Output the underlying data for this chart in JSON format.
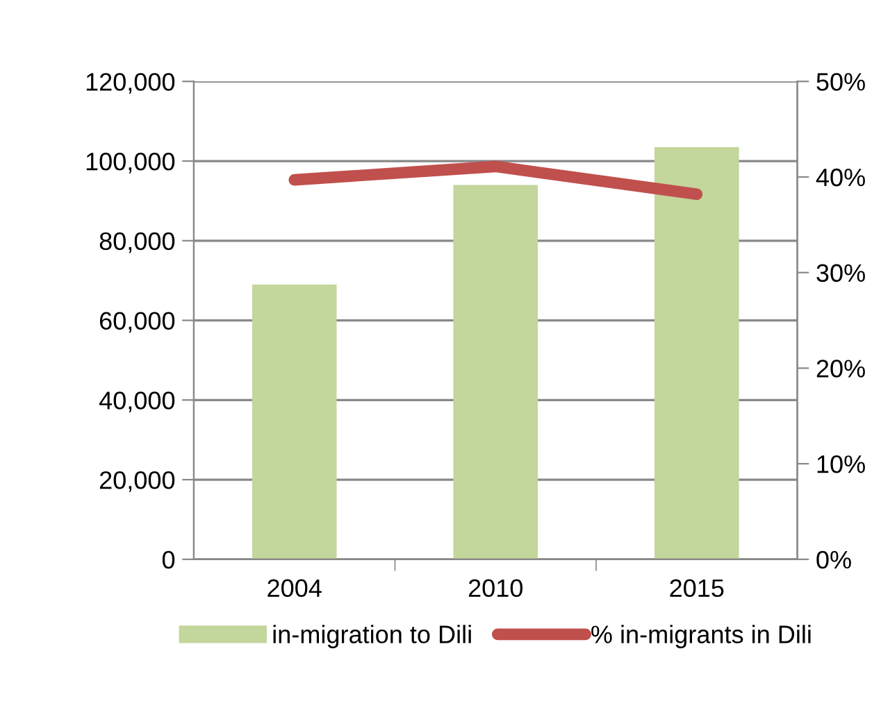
{
  "chart_data": {
    "type": "bar",
    "categories": [
      "2004",
      "2010",
      "2015"
    ],
    "series": [
      {
        "name": "in-migration to Dili",
        "color": "#c3d69b",
        "values": [
          69000,
          94000,
          103500
        ]
      },
      {
        "name": "% in-migrants in Dili",
        "type": "line",
        "axis": "y2",
        "color": "#c0504d",
        "values": [
          39.7,
          41.1,
          38.2
        ]
      }
    ],
    "ylim": [
      0,
      120000
    ],
    "yticks": [
      {
        "value": 0,
        "label": "0"
      },
      {
        "value": 20000,
        "label": "20,000"
      },
      {
        "value": 40000,
        "label": "40,000"
      },
      {
        "value": 60000,
        "label": "60,000"
      },
      {
        "value": 80000,
        "label": "80,000"
      },
      {
        "value": 100000,
        "label": "100,000"
      },
      {
        "value": 120000,
        "label": "120,000"
      }
    ],
    "y2lim": [
      0,
      50
    ],
    "y2ticks": [
      {
        "value": 0,
        "label": "0%"
      },
      {
        "value": 10,
        "label": "10%"
      },
      {
        "value": 20,
        "label": "20%"
      },
      {
        "value": 30,
        "label": "30%"
      },
      {
        "value": 40,
        "label": "40%"
      },
      {
        "value": 50,
        "label": "50%"
      }
    ],
    "grid": "y",
    "legend": "bottom",
    "marker": "none",
    "line_style": "solid"
  }
}
